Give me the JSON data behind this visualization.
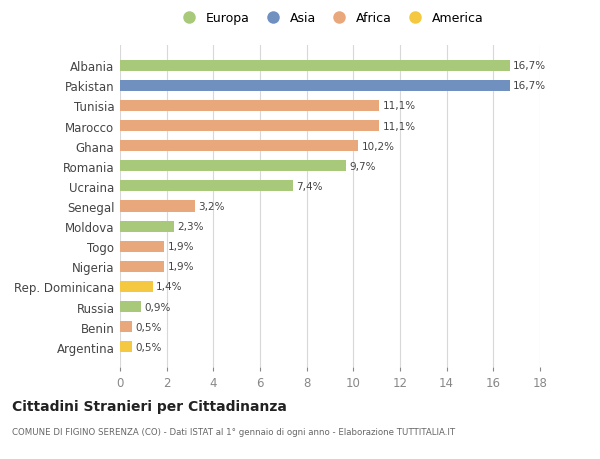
{
  "countries": [
    "Albania",
    "Pakistan",
    "Tunisia",
    "Marocco",
    "Ghana",
    "Romania",
    "Ucraina",
    "Senegal",
    "Moldova",
    "Togo",
    "Nigeria",
    "Rep. Dominicana",
    "Russia",
    "Benin",
    "Argentina"
  ],
  "values": [
    16.7,
    16.7,
    11.1,
    11.1,
    10.2,
    9.7,
    7.4,
    3.2,
    2.3,
    1.9,
    1.9,
    1.4,
    0.9,
    0.5,
    0.5
  ],
  "labels": [
    "16,7%",
    "16,7%",
    "11,1%",
    "11,1%",
    "10,2%",
    "9,7%",
    "7,4%",
    "3,2%",
    "2,3%",
    "1,9%",
    "1,9%",
    "1,4%",
    "0,9%",
    "0,5%",
    "0,5%"
  ],
  "continents": [
    "Europa",
    "Asia",
    "Africa",
    "Africa",
    "Africa",
    "Europa",
    "Europa",
    "Africa",
    "Europa",
    "Africa",
    "Africa",
    "America",
    "Europa",
    "Africa",
    "America"
  ],
  "colors": {
    "Europa": "#a8c97a",
    "Asia": "#7090c0",
    "Africa": "#e8a87c",
    "America": "#f5c842"
  },
  "legend_order": [
    "Europa",
    "Asia",
    "Africa",
    "America"
  ],
  "title": "Cittadini Stranieri per Cittadinanza",
  "subtitle": "COMUNE DI FIGINO SERENZA (CO) - Dati ISTAT al 1° gennaio di ogni anno - Elaborazione TUTTITALIA.IT",
  "xlim": [
    0,
    18
  ],
  "xticks": [
    0,
    2,
    4,
    6,
    8,
    10,
    12,
    14,
    16,
    18
  ],
  "bg_color": "#ffffff",
  "grid_color": "#d8d8d8"
}
